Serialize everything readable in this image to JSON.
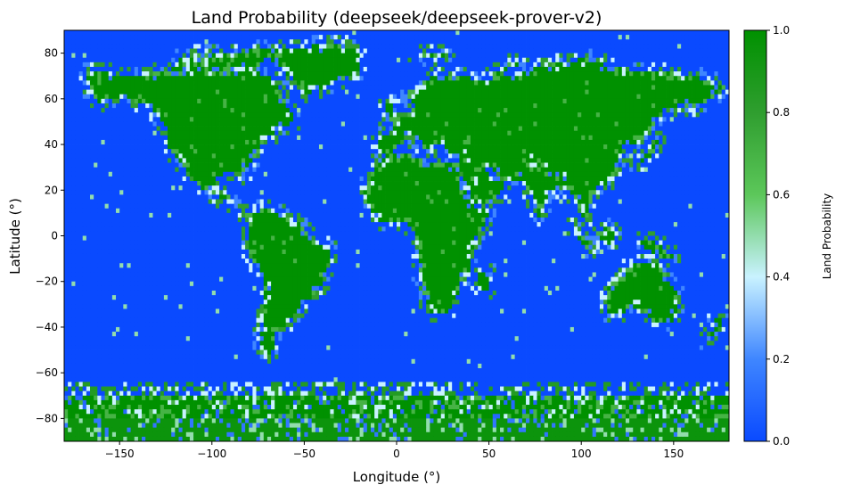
{
  "chart_data": {
    "type": "heatmap",
    "title": "Land Probability (deepseek/deepseek-prover-v2)",
    "xlabel": "Longitude (°)",
    "ylabel": "Latitude (°)",
    "xlim": [
      -180,
      180
    ],
    "ylim": [
      -90,
      90
    ],
    "x_ticks": [
      -150,
      -100,
      -50,
      0,
      50,
      100,
      150
    ],
    "y_ticks": [
      -80,
      -60,
      -40,
      -20,
      0,
      20,
      40,
      60,
      80
    ],
    "grid_resolution_deg": 2,
    "value_range": [
      0,
      1
    ],
    "colorbar": {
      "label": "Land Probability",
      "ticks": [
        0.0,
        0.2,
        0.4,
        0.6,
        0.8,
        1.0
      ],
      "colors": [
        "#0a4aff",
        "#3f86ff",
        "#c9f2ff",
        "#5cc75a",
        "#2f9e2f",
        "#009100"
      ]
    },
    "land_regions": [
      {
        "name": "North America",
        "points": [
          [
            -168,
            72
          ],
          [
            -155,
            71
          ],
          [
            -140,
            70
          ],
          [
            -125,
            72
          ],
          [
            -110,
            76
          ],
          [
            -95,
            76
          ],
          [
            -80,
            74
          ],
          [
            -66,
            68
          ],
          [
            -60,
            58
          ],
          [
            -55,
            50
          ],
          [
            -66,
            45
          ],
          [
            -72,
            41
          ],
          [
            -76,
            35
          ],
          [
            -81,
            30
          ],
          [
            -82,
            26
          ],
          [
            -90,
            29
          ],
          [
            -97,
            26
          ],
          [
            -98,
            20
          ],
          [
            -92,
            18
          ],
          [
            -88,
            16
          ],
          [
            -83,
            10
          ],
          [
            -79,
            8
          ],
          [
            -86,
            13
          ],
          [
            -94,
            16
          ],
          [
            -105,
            20
          ],
          [
            -112,
            26
          ],
          [
            -118,
            33
          ],
          [
            -124,
            40
          ],
          [
            -125,
            48
          ],
          [
            -135,
            58
          ],
          [
            -150,
            60
          ],
          [
            -160,
            58
          ],
          [
            -166,
            63
          ]
        ]
      },
      {
        "name": "Greenland",
        "points": [
          [
            -60,
            82
          ],
          [
            -30,
            84
          ],
          [
            -20,
            80
          ],
          [
            -20,
            72
          ],
          [
            -40,
            65
          ],
          [
            -50,
            62
          ],
          [
            -55,
            68
          ],
          [
            -70,
            78
          ]
        ]
      },
      {
        "name": "South America",
        "points": [
          [
            -80,
            9
          ],
          [
            -72,
            12
          ],
          [
            -62,
            10
          ],
          [
            -52,
            5
          ],
          [
            -44,
            -2
          ],
          [
            -35,
            -6
          ],
          [
            -38,
            -14
          ],
          [
            -40,
            -22
          ],
          [
            -48,
            -28
          ],
          [
            -54,
            -34
          ],
          [
            -58,
            -38
          ],
          [
            -65,
            -42
          ],
          [
            -66,
            -48
          ],
          [
            -69,
            -52
          ],
          [
            -72,
            -54
          ],
          [
            -75,
            -48
          ],
          [
            -73,
            -40
          ],
          [
            -71,
            -30
          ],
          [
            -71,
            -20
          ],
          [
            -75,
            -14
          ],
          [
            -81,
            -6
          ],
          [
            -80,
            0
          ]
        ]
      },
      {
        "name": "Eurasia",
        "points": [
          [
            -10,
            36
          ],
          [
            -9,
            43
          ],
          [
            -2,
            44
          ],
          [
            -5,
            48
          ],
          [
            3,
            51
          ],
          [
            8,
            54
          ],
          [
            10,
            58
          ],
          [
            5,
            62
          ],
          [
            12,
            66
          ],
          [
            20,
            70
          ],
          [
            30,
            71
          ],
          [
            45,
            68
          ],
          [
            60,
            70
          ],
          [
            75,
            73
          ],
          [
            90,
            76
          ],
          [
            105,
            78
          ],
          [
            115,
            74
          ],
          [
            130,
            72
          ],
          [
            145,
            72
          ],
          [
            160,
            70
          ],
          [
            170,
            68
          ],
          [
            178,
            65
          ],
          [
            170,
            60
          ],
          [
            160,
            55
          ],
          [
            155,
            58
          ],
          [
            145,
            55
          ],
          [
            140,
            50
          ],
          [
            135,
            43
          ],
          [
            128,
            40
          ],
          [
            122,
            40
          ],
          [
            121,
            31
          ],
          [
            117,
            24
          ],
          [
            108,
            21
          ],
          [
            106,
            15
          ],
          [
            104,
            10
          ],
          [
            102,
            5
          ],
          [
            100,
            10
          ],
          [
            98,
            15
          ],
          [
            93,
            20
          ],
          [
            88,
            22
          ],
          [
            80,
            15
          ],
          [
            77,
            8
          ],
          [
            72,
            20
          ],
          [
            67,
            25
          ],
          [
            58,
            25
          ],
          [
            56,
            27
          ],
          [
            50,
            30
          ],
          [
            45,
            28
          ],
          [
            40,
            22
          ],
          [
            43,
            13
          ],
          [
            35,
            28
          ],
          [
            33,
            31
          ],
          [
            35,
            36
          ],
          [
            28,
            37
          ],
          [
            26,
            40
          ],
          [
            20,
            40
          ],
          [
            15,
            38
          ],
          [
            12,
            44
          ],
          [
            7,
            44
          ],
          [
            3,
            42
          ],
          [
            -4,
            36
          ]
        ]
      },
      {
        "name": "Africa",
        "points": [
          [
            -17,
            21
          ],
          [
            -17,
            15
          ],
          [
            -14,
            10
          ],
          [
            -7,
            5
          ],
          [
            2,
            6
          ],
          [
            9,
            4
          ],
          [
            10,
            -2
          ],
          [
            12,
            -6
          ],
          [
            13,
            -12
          ],
          [
            12,
            -18
          ],
          [
            15,
            -25
          ],
          [
            18,
            -33
          ],
          [
            22,
            -35
          ],
          [
            28,
            -33
          ],
          [
            33,
            -26
          ],
          [
            35,
            -20
          ],
          [
            40,
            -15
          ],
          [
            40,
            -10
          ],
          [
            42,
            -2
          ],
          [
            47,
            3
          ],
          [
            51,
            11
          ],
          [
            44,
            12
          ],
          [
            40,
            15
          ],
          [
            35,
            25
          ],
          [
            32,
            31
          ],
          [
            25,
            32
          ],
          [
            20,
            31
          ],
          [
            10,
            34
          ],
          [
            10,
            37
          ],
          [
            0,
            36
          ],
          [
            -6,
            35
          ],
          [
            -10,
            30
          ],
          [
            -14,
            26
          ]
        ]
      },
      {
        "name": "Arabia",
        "points": [
          [
            35,
            30
          ],
          [
            40,
            31
          ],
          [
            48,
            29
          ],
          [
            52,
            25
          ],
          [
            56,
            26
          ],
          [
            59,
            22
          ],
          [
            56,
            18
          ],
          [
            52,
            16
          ],
          [
            45,
            13
          ],
          [
            43,
            14
          ],
          [
            39,
            20
          ]
        ]
      },
      {
        "name": "India",
        "points": [
          [
            68,
            24
          ],
          [
            72,
            21
          ],
          [
            74,
            15
          ],
          [
            77,
            8
          ],
          [
            80,
            10
          ],
          [
            80,
            15
          ],
          [
            85,
            19
          ],
          [
            88,
            22
          ],
          [
            90,
            26
          ],
          [
            80,
            30
          ],
          [
            72,
            34
          ],
          [
            70,
            28
          ]
        ]
      },
      {
        "name": "Madagascar",
        "points": [
          [
            44,
            -16
          ],
          [
            50,
            -15
          ],
          [
            50,
            -23
          ],
          [
            47,
            -25
          ],
          [
            44,
            -22
          ]
        ]
      },
      {
        "name": "Australia",
        "points": [
          [
            114,
            -22
          ],
          [
            114,
            -34
          ],
          [
            118,
            -35
          ],
          [
            124,
            -33
          ],
          [
            131,
            -31
          ],
          [
            136,
            -35
          ],
          [
            140,
            -38
          ],
          [
            146,
            -39
          ],
          [
            150,
            -37
          ],
          [
            153,
            -28
          ],
          [
            153,
            -25
          ],
          [
            146,
            -18
          ],
          [
            142,
            -11
          ],
          [
            136,
            -12
          ],
          [
            130,
            -12
          ],
          [
            125,
            -14
          ],
          [
            122,
            -18
          ]
        ]
      },
      {
        "name": "Borneo",
        "points": [
          [
            109,
            1
          ],
          [
            112,
            -3
          ],
          [
            117,
            -4
          ],
          [
            119,
            1
          ],
          [
            117,
            6
          ],
          [
            113,
            3
          ]
        ]
      },
      {
        "name": "Sumatra",
        "points": [
          [
            95,
            5
          ],
          [
            100,
            2
          ],
          [
            106,
            -6
          ],
          [
            103,
            -5
          ],
          [
            97,
            1
          ]
        ]
      },
      {
        "name": "New Guinea",
        "points": [
          [
            131,
            -1
          ],
          [
            141,
            -3
          ],
          [
            150,
            -9
          ],
          [
            143,
            -9
          ],
          [
            138,
            -7
          ],
          [
            133,
            -4
          ]
        ]
      },
      {
        "name": "Japan",
        "points": [
          [
            130,
            31
          ],
          [
            136,
            34
          ],
          [
            141,
            38
          ],
          [
            142,
            43
          ],
          [
            140,
            41
          ],
          [
            136,
            36
          ]
        ]
      },
      {
        "name": "Great Britain",
        "points": [
          [
            -6,
            50
          ],
          [
            2,
            51
          ],
          [
            0,
            54
          ],
          [
            -3,
            58
          ],
          [
            -6,
            57
          ]
        ]
      },
      {
        "name": "New Zealand",
        "points": [
          [
            167,
            -46
          ],
          [
            174,
            -41
          ],
          [
            178,
            -38
          ],
          [
            173,
            -35
          ],
          [
            172,
            -41
          ]
        ]
      },
      {
        "name": "Svalbard",
        "points": [
          [
            10,
            77
          ],
          [
            28,
            78
          ],
          [
            24,
            81
          ],
          [
            12,
            80
          ]
        ]
      },
      {
        "name": "Novaya Zemlya",
        "points": [
          [
            52,
            71
          ],
          [
            56,
            71
          ],
          [
            70,
            77
          ],
          [
            62,
            76
          ]
        ]
      },
      {
        "name": "Arctic Archipelago",
        "points": [
          [
            -120,
            72
          ],
          [
            -80,
            72
          ],
          [
            -62,
            82
          ],
          [
            -100,
            80
          ],
          [
            -118,
            78
          ]
        ]
      }
    ]
  }
}
